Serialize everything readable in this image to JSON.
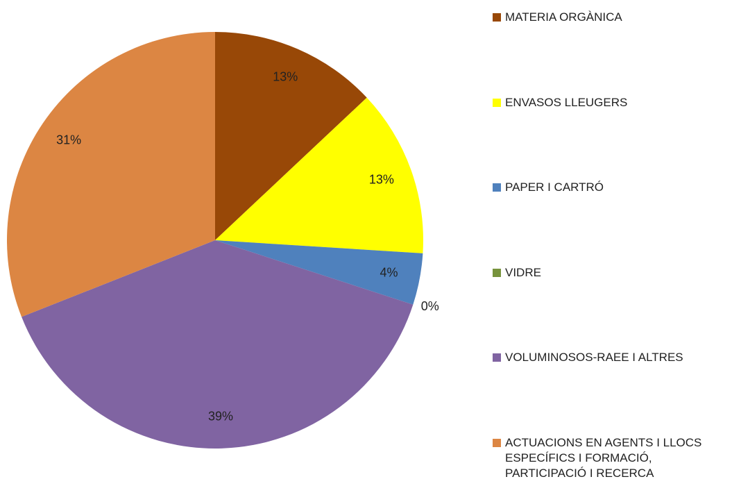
{
  "chart_data": {
    "type": "pie",
    "categories": [
      "MATERIA ORGÀNICA",
      "ENVASOS LLEUGERS",
      "PAPER I CARTRÓ",
      "VIDRE",
      "VOLUMINOSOS-RAEE I ALTRES",
      "ACTUACIONS EN AGENTS I LLOCS ESPECÍFICS I FORMACIÓ, PARTICIPACIÓ I RECERCA"
    ],
    "values": [
      13,
      13,
      4,
      0,
      39,
      31
    ],
    "value_labels": [
      "13%",
      "13%",
      "4%",
      "0%",
      "39%",
      "31%"
    ],
    "colors": [
      "#984807",
      "#ffff00",
      "#4f81bd",
      "#77933c",
      "#8064a2",
      "#dc8643"
    ],
    "legend": "right"
  }
}
